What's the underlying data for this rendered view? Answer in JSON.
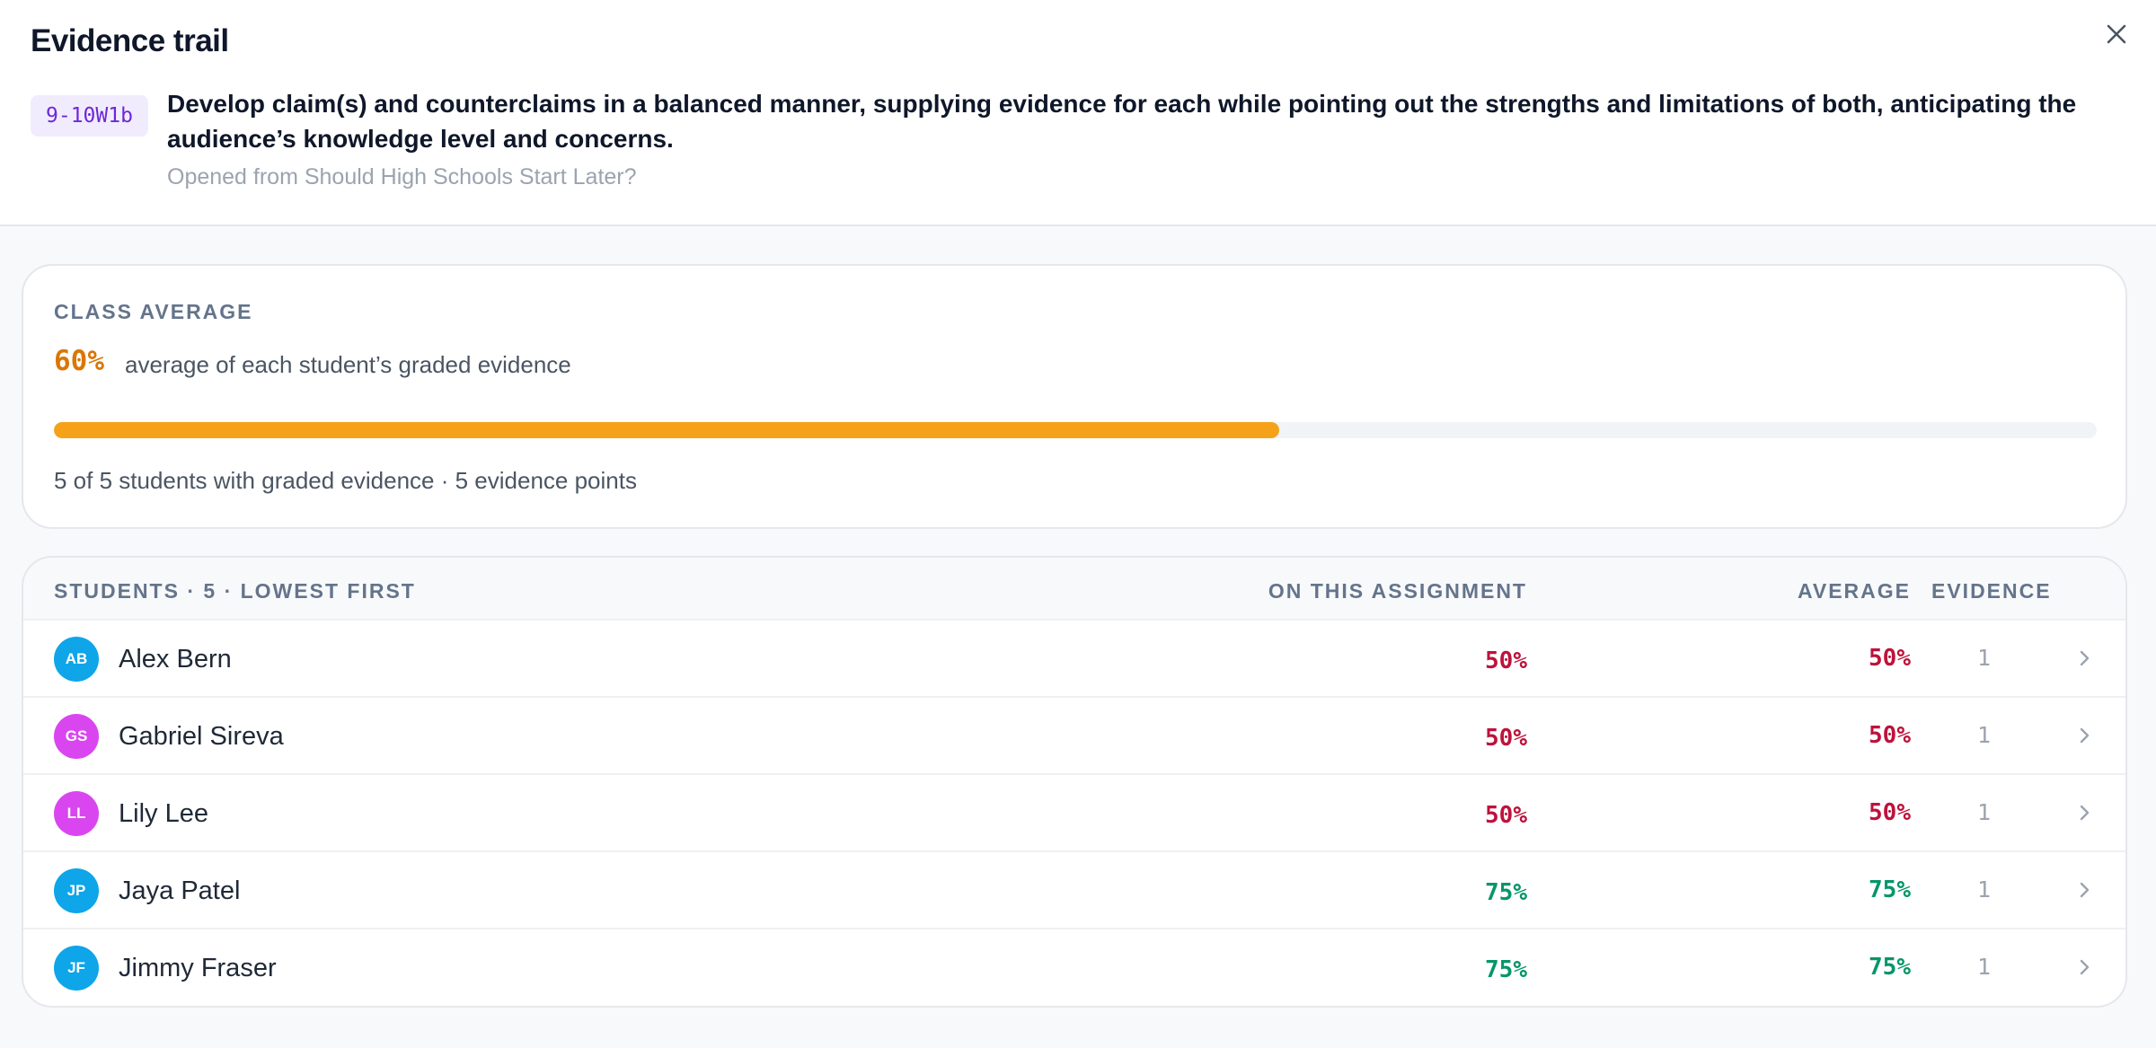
{
  "header": {
    "title": "Evidence trail",
    "close_icon": "close-icon",
    "standard_code": "9-10W1b",
    "standard_text": "Develop claim(s) and counterclaims in a balanced manner, supplying evidence for each while pointing out the strengths and limitations of both, anticipating the audience’s knowledge level and concerns.",
    "opened_from": "Opened from Should High Schools Start Later?"
  },
  "class_average": {
    "label": "CLASS AVERAGE",
    "value": "60%",
    "value_fraction": 0.6,
    "description": "average of each student’s graded evidence",
    "footer": "5 of 5 students with graded evidence · 5 evidence points",
    "bar_color": "#f5a21a"
  },
  "students": {
    "header_label": "STUDENTS · 5 · LOWEST FIRST",
    "col_assignment": "ON THIS ASSIGNMENT",
    "col_average": "AVERAGE",
    "col_evidence": "EVIDENCE",
    "rows": [
      {
        "initials": "AB",
        "name": "Alex Bern",
        "assignment": "50%",
        "average": "50%",
        "evidence": "1",
        "avatar_color": "#0ea5e9",
        "score_color": "#be123c"
      },
      {
        "initials": "GS",
        "name": "Gabriel Sireva",
        "assignment": "50%",
        "average": "50%",
        "evidence": "1",
        "avatar_color": "#d946ef",
        "score_color": "#be123c"
      },
      {
        "initials": "LL",
        "name": "Lily Lee",
        "assignment": "50%",
        "average": "50%",
        "evidence": "1",
        "avatar_color": "#d946ef",
        "score_color": "#be123c"
      },
      {
        "initials": "JP",
        "name": "Jaya Patel",
        "assignment": "75%",
        "average": "75%",
        "evidence": "1",
        "avatar_color": "#0ea5e9",
        "score_color": "#059669"
      },
      {
        "initials": "JF",
        "name": "Jimmy Fraser",
        "assignment": "75%",
        "average": "75%",
        "evidence": "1",
        "avatar_color": "#0ea5e9",
        "score_color": "#059669"
      }
    ]
  }
}
